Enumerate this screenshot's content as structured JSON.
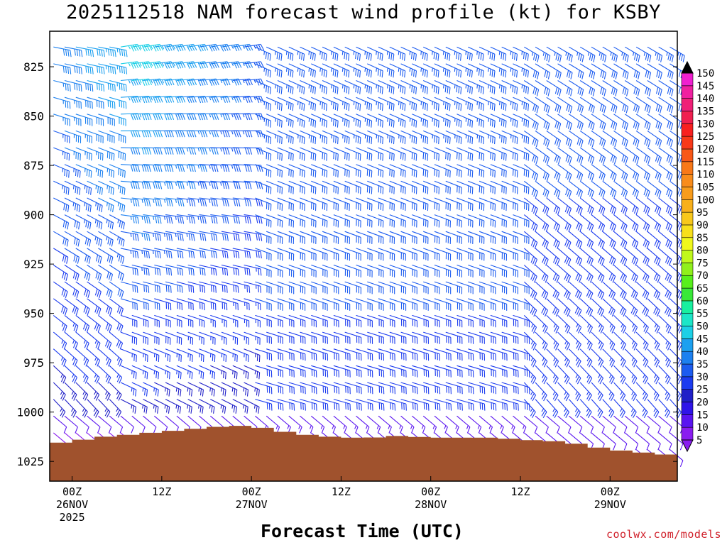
{
  "title": "2025112518 NAM forecast wind profile (kt) for KSBY",
  "credit": "coolwx.com/models",
  "chart_data": {
    "type": "heatmap",
    "subtype": "wind-barb time-height profile",
    "title": "2025112518 NAM forecast wind profile (kt) for KSBY",
    "xlabel": "Forecast Time (UTC)",
    "ylabel": "",
    "x_range_hours": [
      -3,
      81
    ],
    "y_range_mb": [
      1035,
      807
    ],
    "x_ticks": [
      {
        "hour": 0,
        "lines": [
          "00Z",
          "26NOV",
          "2025"
        ]
      },
      {
        "hour": 12,
        "lines": [
          "12Z"
        ]
      },
      {
        "hour": 24,
        "lines": [
          "00Z",
          "27NOV"
        ]
      },
      {
        "hour": 36,
        "lines": [
          "12Z"
        ]
      },
      {
        "hour": 48,
        "lines": [
          "00Z",
          "28NOV"
        ]
      },
      {
        "hour": 60,
        "lines": [
          "12Z"
        ]
      },
      {
        "hour": 72,
        "lines": [
          "00Z",
          "29NOV"
        ]
      }
    ],
    "y_ticks": [
      825,
      850,
      875,
      900,
      925,
      950,
      975,
      1000,
      1025
    ],
    "colorbar": {
      "levels": [
        5,
        10,
        15,
        20,
        25,
        30,
        35,
        40,
        45,
        50,
        55,
        60,
        65,
        70,
        75,
        80,
        85,
        90,
        95,
        100,
        105,
        110,
        115,
        120,
        125,
        130,
        135,
        140,
        145,
        150
      ],
      "colors": [
        "#8a1cf0",
        "#5a14f0",
        "#2f14e8",
        "#2020c8",
        "#1c3cf0",
        "#1c5cf0",
        "#1c80f0",
        "#1ca0f0",
        "#1cd0e6",
        "#1ce6c8",
        "#18f0a0",
        "#38e838",
        "#58f01c",
        "#90f01c",
        "#c0f81c",
        "#f0f81c",
        "#f8e01c",
        "#f8c81c",
        "#f8b01c",
        "#f89c1c",
        "#f88c1c",
        "#f87818",
        "#f85818",
        "#f83818",
        "#f82020",
        "#f02050",
        "#f02078",
        "#f020a0",
        "#f020d0",
        "#f020f0"
      ]
    },
    "surface_pressure": [
      {
        "hour": -3,
        "mb": 1016
      },
      {
        "hour": 0,
        "mb": 1015
      },
      {
        "hour": 3,
        "mb": 1013
      },
      {
        "hour": 6,
        "mb": 1012
      },
      {
        "hour": 9,
        "mb": 1011
      },
      {
        "hour": 12,
        "mb": 1010
      },
      {
        "hour": 15,
        "mb": 1009
      },
      {
        "hour": 18,
        "mb": 1008
      },
      {
        "hour": 21,
        "mb": 1007
      },
      {
        "hour": 24,
        "mb": 1007
      },
      {
        "hour": 27,
        "mb": 1009
      },
      {
        "hour": 30,
        "mb": 1011
      },
      {
        "hour": 33,
        "mb": 1012
      },
      {
        "hour": 36,
        "mb": 1013
      },
      {
        "hour": 40,
        "mb": 1013
      },
      {
        "hour": 44,
        "mb": 1012
      },
      {
        "hour": 48,
        "mb": 1013
      },
      {
        "hour": 54,
        "mb": 1013
      },
      {
        "hour": 57,
        "mb": 1013
      },
      {
        "hour": 60,
        "mb": 1014
      },
      {
        "hour": 66,
        "mb": 1015
      },
      {
        "hour": 69,
        "mb": 1017
      },
      {
        "hour": 72,
        "mb": 1019
      },
      {
        "hour": 75,
        "mb": 1020
      },
      {
        "hour": 78,
        "mb": 1021
      },
      {
        "hour": 81,
        "mb": 1022
      }
    ]
  }
}
